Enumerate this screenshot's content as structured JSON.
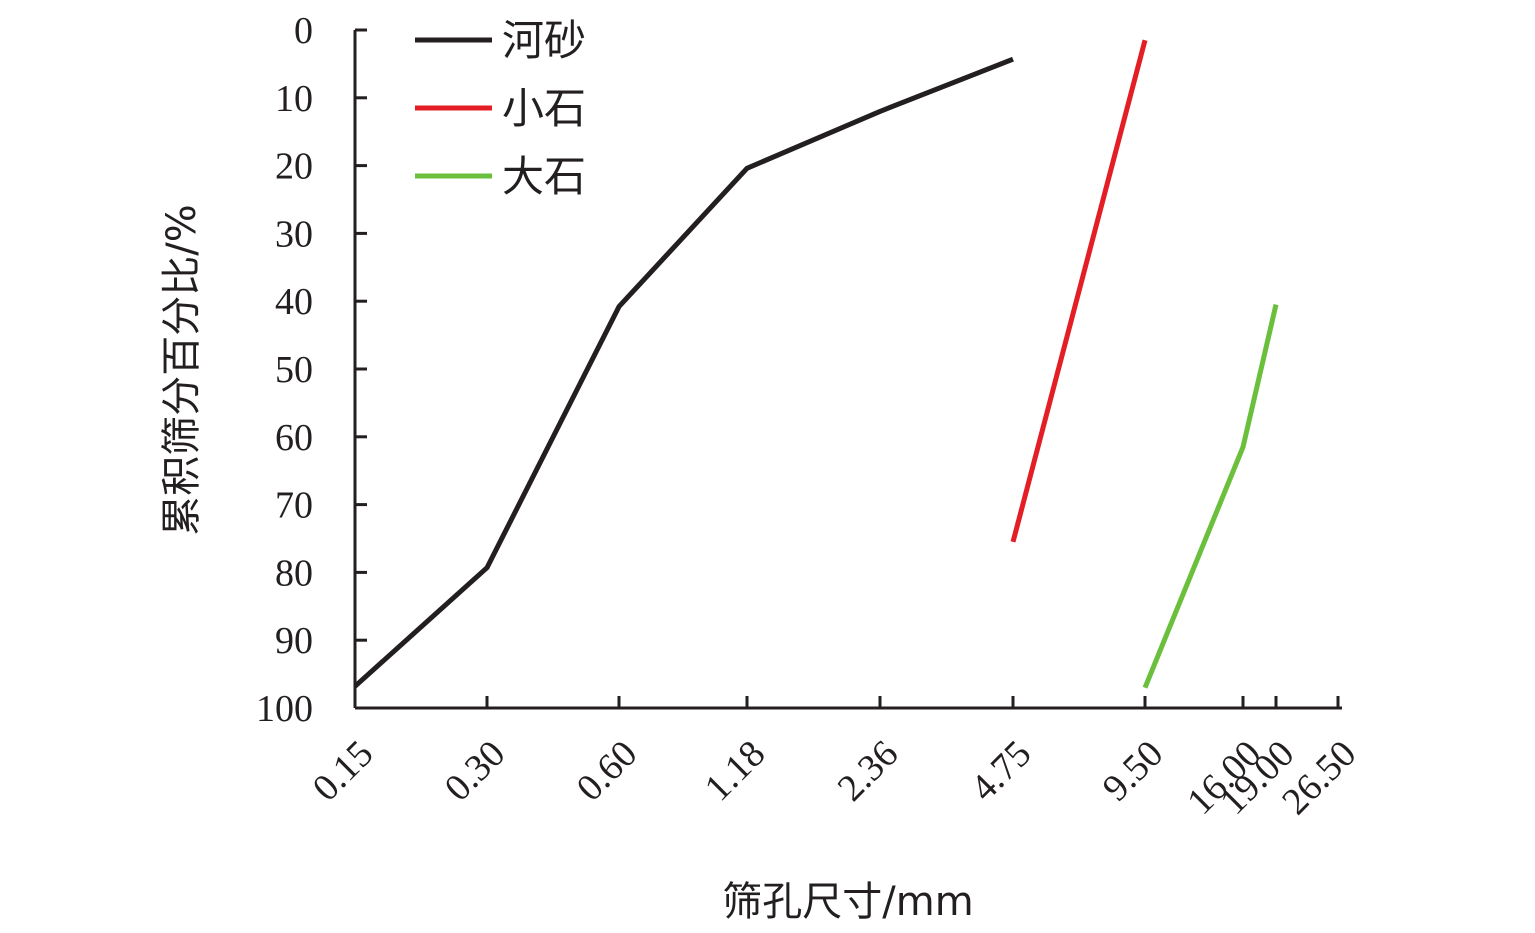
{
  "chart_data": {
    "type": "line",
    "xlabel": "筛孔尺寸/mm",
    "ylabel": "累积筛分百分比/%",
    "ylim": [
      0,
      100
    ],
    "y_inverted": true,
    "x_scale": "categorical-log",
    "x_ticks": [
      0.15,
      0.3,
      0.6,
      1.18,
      2.36,
      4.75,
      9.5,
      16.0,
      19.0,
      26.5
    ],
    "x_tick_labels": [
      "0.15",
      "0.30",
      "0.60",
      "1.18",
      "2.36",
      "4.75",
      "9.50",
      "16.00",
      "19.00",
      "26.50"
    ],
    "y_ticks": [
      0,
      10,
      20,
      30,
      40,
      50,
      60,
      70,
      80,
      90,
      100
    ],
    "y_tick_labels": [
      "0",
      "10",
      "20",
      "30",
      "40",
      "50",
      "60",
      "70",
      "80",
      "90",
      "100"
    ],
    "legend_position": "top-left",
    "grid": false,
    "series": [
      {
        "name": "河砂",
        "color": "#231f20",
        "x": [
          0.15,
          0.3,
          0.6,
          1.18,
          2.36,
          4.75
        ],
        "y": [
          96.8,
          79.3,
          40.8,
          20.4,
          12.0,
          4.3
        ]
      },
      {
        "name": "小石",
        "color": "#e31e25",
        "x": [
          4.75,
          9.5
        ],
        "y": [
          75.5,
          1.5
        ]
      },
      {
        "name": "大石",
        "color": "#6abf3c",
        "x": [
          9.5,
          16.0,
          19.0
        ],
        "y": [
          97.0,
          61.5,
          40.5
        ]
      }
    ]
  }
}
